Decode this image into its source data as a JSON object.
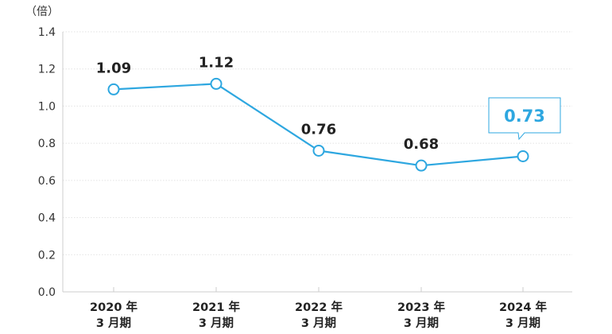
{
  "chart_data": {
    "type": "line",
    "ylabel": "（倍）",
    "ylim": [
      0,
      1.4
    ],
    "ytick_labels": [
      "0.0",
      "0.2",
      "0.4",
      "0.6",
      "0.8",
      "1.0",
      "1.2",
      "1.4"
    ],
    "grid": true,
    "categories": [
      [
        "2020 年",
        "3 月期"
      ],
      [
        "2021 年",
        "3 月期"
      ],
      [
        "2022 年",
        "3 月期"
      ],
      [
        "2023 年",
        "3 月期"
      ],
      [
        "2024 年",
        "3 月期"
      ]
    ],
    "series": [
      {
        "values": [
          1.09,
          1.12,
          0.76,
          0.68,
          0.73
        ]
      }
    ],
    "data_labels": [
      "1.09",
      "1.12",
      "0.76",
      "0.68",
      "0.73"
    ],
    "highlight_index": 4,
    "colors": {
      "line": "#2ea7e0",
      "axis": "#cccccc",
      "grid": "#e2e2e2",
      "highlight": "#2ea7e0"
    }
  }
}
